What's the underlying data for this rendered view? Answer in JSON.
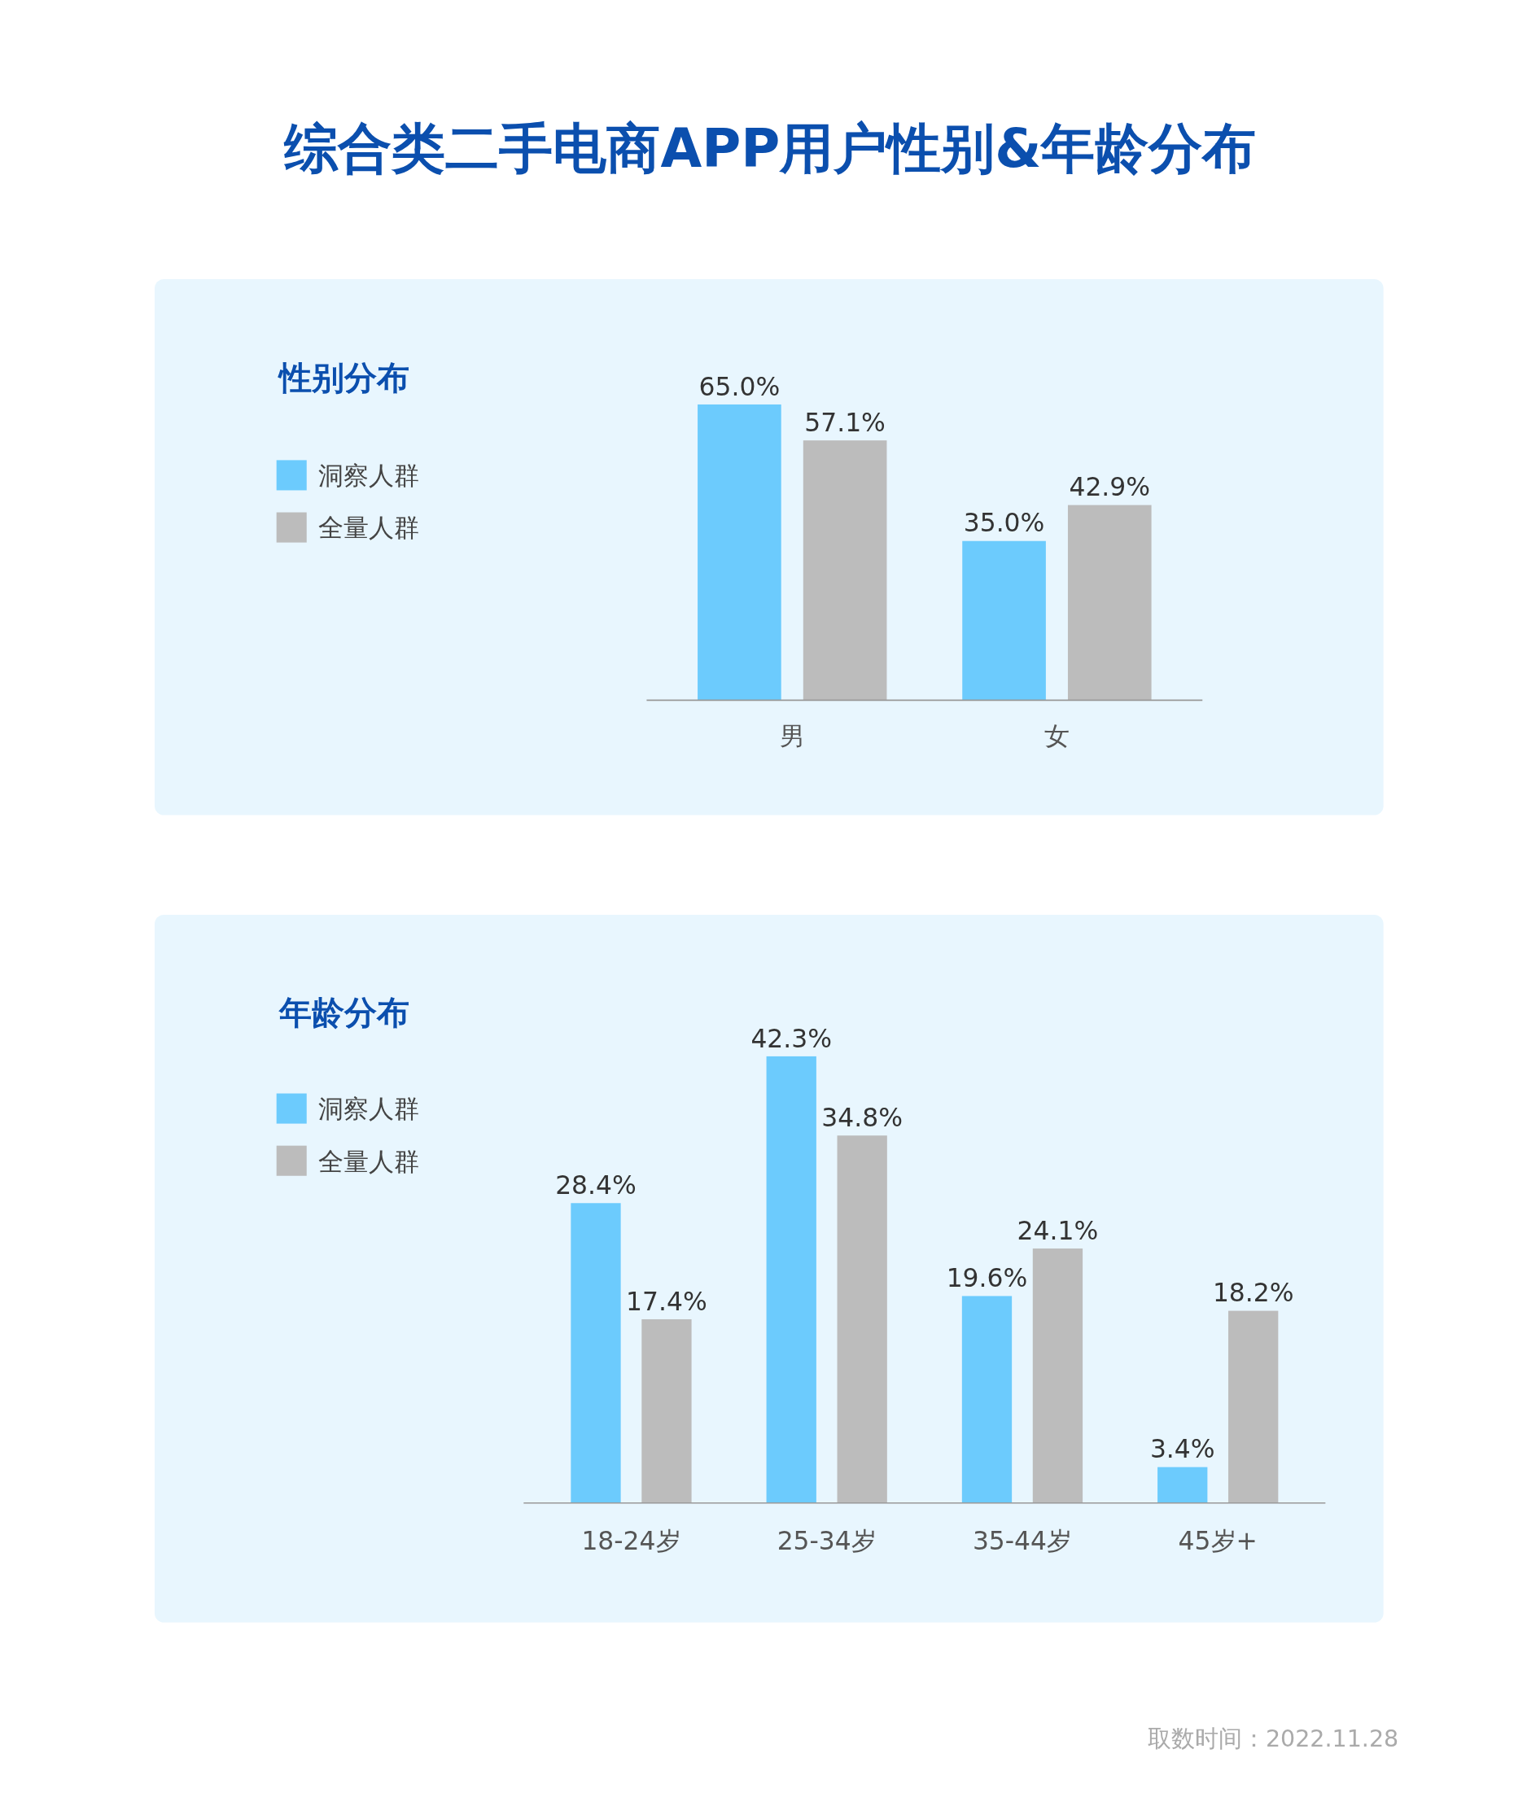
{
  "chart_data": [
    {
      "type": "other",
      "title": "综合类二手电商APP用户性别&年龄分布"
    },
    {
      "type": "bar",
      "legend_title": "性别分布",
      "categories": [
        "男",
        "女"
      ],
      "series": [
        {
          "name": "洞察人群",
          "color": "#6ccbfd",
          "values": [
            65.0,
            35.0
          ],
          "value_labels": [
            "65.0%",
            "35.0%"
          ]
        },
        {
          "name": "全量人群",
          "color": "#bcbcbc",
          "values": [
            57.1,
            42.9
          ],
          "value_labels": [
            "57.1%",
            "42.9%"
          ]
        }
      ],
      "legend": "top left"
    },
    {
      "type": "bar",
      "legend_title": "年龄分布",
      "categories": [
        "18-24岁",
        "25-34岁",
        "35-44岁",
        "45岁+"
      ],
      "series": [
        {
          "name": "洞察人群",
          "color": "#6ccbfd",
          "values": [
            28.4,
            42.3,
            19.6,
            3.4
          ],
          "value_labels": [
            "28.4%",
            "42.3%",
            "19.6%",
            "3.4%"
          ]
        },
        {
          "name": "全量人群",
          "color": "#bcbcbc",
          "values": [
            17.4,
            34.8,
            24.1,
            18.2
          ],
          "value_labels": [
            "17.4%",
            "34.8%",
            "24.1%",
            "18.2%"
          ]
        }
      ],
      "legend": "top left",
      "annotations": [
        "取数时间：2022.11.28"
      ]
    }
  ]
}
